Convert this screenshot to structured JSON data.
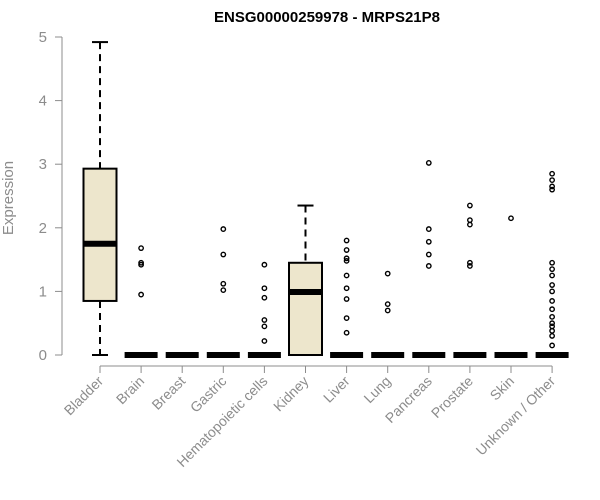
{
  "chart_data": {
    "type": "box",
    "title": "ENSG00000259978 - MRPS21P8",
    "xlabel": "",
    "ylabel": "Expression",
    "ylim": [
      0,
      5
    ],
    "yticks": [
      "0",
      "1",
      "2",
      "3",
      "4",
      "5"
    ],
    "categories": [
      "Bladder",
      "Brain",
      "Breast",
      "Gastric",
      "Hematopoietic cells",
      "Kidney",
      "Liver",
      "Lung",
      "Pancreas",
      "Prostate",
      "Skin",
      "Unknown / Other"
    ],
    "colors": {
      "box_fill": "#ede6cc",
      "box_stroke": "#000000",
      "axis": "#8c8c8c"
    },
    "boxes": [
      {
        "category": "Bladder",
        "min": 0,
        "q1": 0.85,
        "median": 1.75,
        "q3": 2.93,
        "max": 4.92,
        "outliers": []
      },
      {
        "category": "Brain",
        "min": 0,
        "q1": 0,
        "median": 0,
        "q3": 0,
        "max": 0,
        "outliers": [
          0.95,
          1.42,
          1.45,
          1.68
        ]
      },
      {
        "category": "Breast",
        "min": 0,
        "q1": 0,
        "median": 0,
        "q3": 0,
        "max": 0,
        "outliers": []
      },
      {
        "category": "Gastric",
        "min": 0,
        "q1": 0,
        "median": 0,
        "q3": 0,
        "max": 0,
        "outliers": [
          1.02,
          1.12,
          1.58,
          1.98
        ]
      },
      {
        "category": "Hematopoietic cells",
        "min": 0,
        "q1": 0,
        "median": 0,
        "q3": 0,
        "max": 0,
        "outliers": [
          0.22,
          0.45,
          0.55,
          0.9,
          1.05,
          1.42
        ]
      },
      {
        "category": "Kidney",
        "min": 0,
        "q1": 0,
        "median": 0.99,
        "q3": 1.45,
        "max": 2.35,
        "outliers": []
      },
      {
        "category": "Liver",
        "min": 0,
        "q1": 0,
        "median": 0,
        "q3": 0,
        "max": 0,
        "outliers": [
          0.35,
          0.58,
          0.88,
          1.05,
          1.25,
          1.48,
          1.52,
          1.65,
          1.8
        ]
      },
      {
        "category": "Lung",
        "min": 0,
        "q1": 0,
        "median": 0,
        "q3": 0,
        "max": 0,
        "outliers": [
          0.7,
          0.8,
          1.28
        ]
      },
      {
        "category": "Pancreas",
        "min": 0,
        "q1": 0,
        "median": 0,
        "q3": 0,
        "max": 0,
        "outliers": [
          1.4,
          1.58,
          1.78,
          1.98,
          3.02
        ]
      },
      {
        "category": "Prostate",
        "min": 0,
        "q1": 0,
        "median": 0,
        "q3": 0,
        "max": 0,
        "outliers": [
          1.4,
          1.45,
          2.05,
          2.12,
          2.35
        ]
      },
      {
        "category": "Skin",
        "min": 0,
        "q1": 0,
        "median": 0,
        "q3": 0,
        "max": 0,
        "outliers": [
          2.15
        ]
      },
      {
        "category": "Unknown / Other",
        "min": 0,
        "q1": 0,
        "median": 0,
        "q3": 0,
        "max": 0,
        "outliers": [
          0.15,
          0.3,
          0.38,
          0.45,
          0.5,
          0.6,
          0.72,
          0.85,
          1.0,
          1.1,
          1.25,
          1.35,
          1.45,
          2.6,
          2.65,
          2.75,
          2.85
        ]
      }
    ]
  }
}
